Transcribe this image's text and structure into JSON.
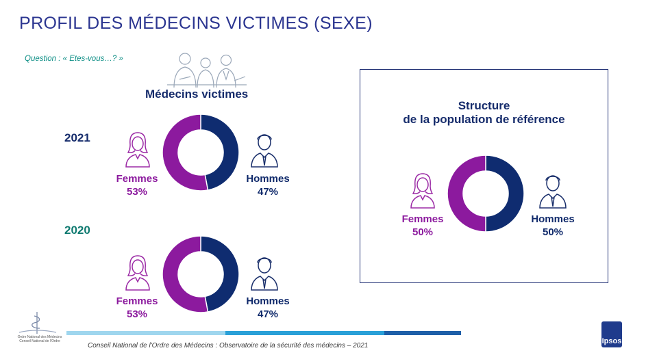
{
  "header": {
    "title": "PROFIL DES MÉDECINS VICTIMES (SEXE)",
    "question": "Question : « Etes-vous…? »"
  },
  "victims": {
    "title": "Médecins victimes"
  },
  "reference": {
    "title_line1": "Structure",
    "title_line2": "de la population de référence"
  },
  "colors": {
    "femmes": "#8c1a9e",
    "hommes": "#0f2c70",
    "title_blue": "#2b3590",
    "teal": "#0f8f86"
  },
  "icons": {
    "people": "people-illustration-icon",
    "female": "female-avatar-icon",
    "male": "male-avatar-icon",
    "caduceus": "caduceus-logo-icon"
  },
  "chart_data": [
    {
      "type": "pie",
      "variant": "donut",
      "title": "2021",
      "categories": [
        "Femmes",
        "Hommes"
      ],
      "values": [
        53,
        47
      ],
      "value_labels": [
        "53%",
        "47%"
      ]
    },
    {
      "type": "pie",
      "variant": "donut",
      "title": "2020",
      "categories": [
        "Femmes",
        "Hommes"
      ],
      "values": [
        53,
        47
      ],
      "value_labels": [
        "53%",
        "47%"
      ]
    },
    {
      "type": "pie",
      "variant": "donut",
      "title": "Structure de la population de référence",
      "categories": [
        "Femmes",
        "Hommes"
      ],
      "values": [
        50,
        50
      ],
      "value_labels": [
        "50%",
        "50%"
      ]
    }
  ],
  "footer": {
    "text": "Conseil National de l'Ordre des Médecins : Observatoire de la sécurité des médecins – 2021",
    "logo_text": "Ipsos",
    "left_logo_line1": "Ordre National des Médecins",
    "left_logo_line2": "Conseil National de l'Ordre"
  }
}
